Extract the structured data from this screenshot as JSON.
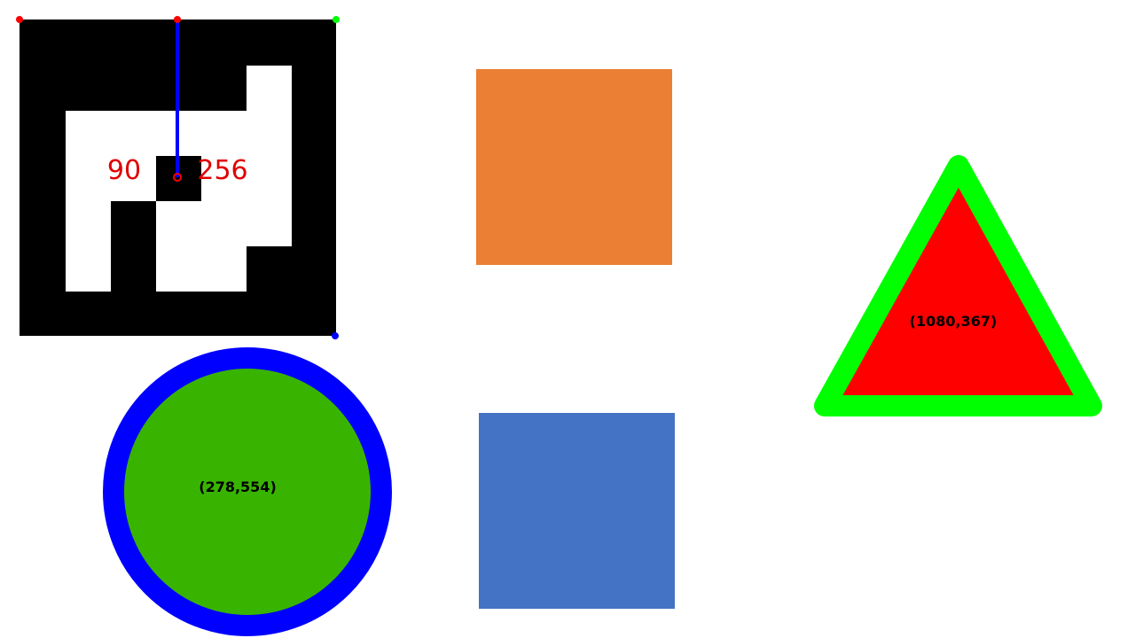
{
  "colors": {
    "background": "#ffffff",
    "marker_fg": "#000000",
    "marker_bg": "#ffffff",
    "marker_label": "#e00000",
    "corner_red": "#ff0000",
    "corner_green": "#00ff00",
    "corner_blue": "#0000ff",
    "axis_line": "#0000ff",
    "orange_square": "#eb7f33",
    "blue_square": "#4472c4",
    "circle_fill": "#38b400",
    "circle_ring": "#0000ff",
    "triangle_fill": "#ff0000",
    "triangle_outline": "#00ff00",
    "coord_text": "#000000"
  },
  "marker": {
    "angle_label": "90",
    "id_label": "256"
  },
  "circle": {
    "center_label": "(278,554)"
  },
  "triangle": {
    "center_label": "(1080,367)"
  }
}
